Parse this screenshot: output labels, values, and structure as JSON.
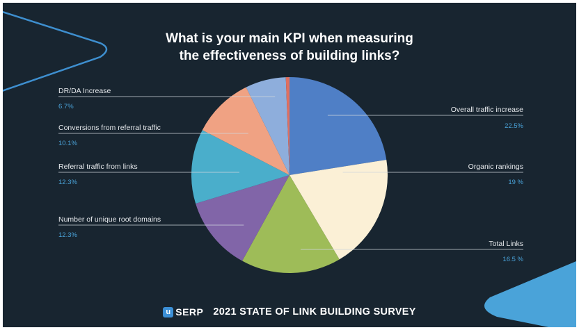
{
  "title_line1": "What is your main KPI when measuring",
  "title_line2": "the effectiveness of building links?",
  "footer": {
    "brand_logo_letter": "u",
    "brand_name": "SERP",
    "survey_title": "2021 STATE OF LINK BUILDING SURVEY"
  },
  "colors": {
    "background": "#182530",
    "accent": "#4aa3d9"
  },
  "chart_data": {
    "type": "pie",
    "title": "What is your main KPI when measuring the effectiveness of building links?",
    "slices": [
      {
        "label": "Overall traffic increase",
        "value": 22.5,
        "value_label": "22.5%",
        "color": "#4f7fc6"
      },
      {
        "label": "Organic rankings",
        "value": 19,
        "value_label": "19 %",
        "color": "#fbf0d6"
      },
      {
        "label": "Total Links",
        "value": 16.5,
        "value_label": "16.5 %",
        "color": "#9ebc58"
      },
      {
        "label": "Number of unique root domains",
        "value": 12.3,
        "value_label": "12.3%",
        "color": "#8165a8"
      },
      {
        "label": "Referral traffic from links",
        "value": 12.3,
        "value_label": "12.3%",
        "color": "#4aaecb"
      },
      {
        "label": "Conversions from referral traffic",
        "value": 10.1,
        "value_label": "10.1%",
        "color": "#f0a283"
      },
      {
        "label": "DR/DA Increase",
        "value": 6.7,
        "value_label": "6.7%",
        "color": "#8eaedc"
      },
      {
        "label": "",
        "value": 0.6,
        "value_label": "",
        "color": "#e07060"
      }
    ]
  }
}
